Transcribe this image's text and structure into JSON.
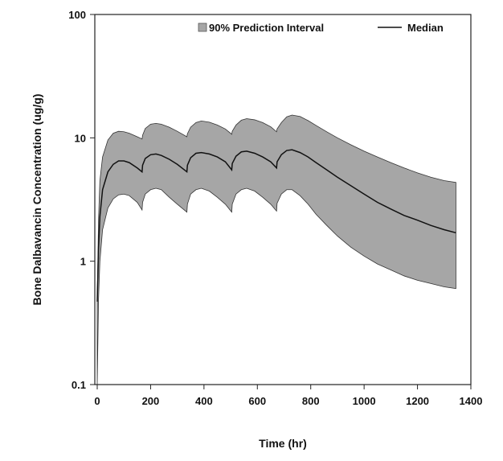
{
  "chart_data": {
    "type": "area",
    "title": "",
    "xlabel": "Time (hr)",
    "ylabel": "Bone Dalbavancin Concentration (ug/g)",
    "xlim": [
      0,
      1400
    ],
    "ylim": [
      0.1,
      100
    ],
    "y_scale": "log",
    "grid": false,
    "legend_position": "top-right",
    "x_ticks": [
      0,
      200,
      400,
      600,
      800,
      1000,
      1200,
      1400
    ],
    "x_tick_labels": [
      "0",
      "200",
      "400",
      "600",
      "800",
      "1000",
      "1200",
      "1400"
    ],
    "y_ticks": [
      0.1,
      1,
      10,
      100
    ],
    "y_tick_labels": [
      "0.1",
      "1",
      "10",
      "100"
    ],
    "legend": {
      "interval_label": "90% Prediction Interval",
      "median_label": "Median"
    },
    "series": [
      {
        "name": "Median",
        "kind": "line",
        "color": "#111111",
        "x": [
          0,
          5,
          10,
          20,
          40,
          60,
          80,
          100,
          120,
          150,
          168,
          170,
          180,
          200,
          220,
          240,
          270,
          300,
          336,
          338,
          350,
          370,
          390,
          420,
          450,
          480,
          504,
          506,
          520,
          540,
          560,
          590,
          620,
          650,
          672,
          674,
          690,
          710,
          730,
          760,
          790,
          820,
          860,
          900,
          950,
          1000,
          1050,
          1100,
          1150,
          1200,
          1250,
          1300,
          1344
        ],
        "y": [
          0.47,
          1.3,
          2.3,
          3.8,
          5.3,
          6.1,
          6.5,
          6.5,
          6.3,
          5.7,
          5.3,
          6.0,
          6.8,
          7.3,
          7.4,
          7.2,
          6.7,
          6.1,
          5.3,
          6.0,
          6.9,
          7.5,
          7.6,
          7.4,
          7.0,
          6.4,
          5.5,
          6.2,
          7.1,
          7.7,
          7.8,
          7.5,
          7.0,
          6.4,
          5.7,
          6.4,
          7.3,
          7.9,
          8.0,
          7.6,
          7.0,
          6.3,
          5.5,
          4.8,
          4.1,
          3.5,
          3.0,
          2.65,
          2.35,
          2.15,
          1.95,
          1.8,
          1.7
        ]
      },
      {
        "name": "90% Prediction Interval",
        "kind": "band",
        "color": "#a6a6a6",
        "x": [
          0,
          5,
          10,
          20,
          40,
          60,
          80,
          100,
          120,
          150,
          168,
          170,
          180,
          200,
          220,
          240,
          270,
          300,
          336,
          338,
          350,
          370,
          390,
          420,
          450,
          480,
          504,
          506,
          520,
          540,
          560,
          590,
          620,
          650,
          672,
          674,
          690,
          710,
          730,
          760,
          790,
          820,
          860,
          900,
          950,
          1000,
          1050,
          1100,
          1150,
          1200,
          1250,
          1300,
          1344
        ],
        "lower": [
          0.1,
          0.5,
          1.0,
          1.8,
          2.7,
          3.2,
          3.45,
          3.5,
          3.4,
          3.0,
          2.6,
          3.0,
          3.5,
          3.8,
          3.9,
          3.8,
          3.3,
          2.9,
          2.5,
          2.9,
          3.5,
          3.8,
          3.9,
          3.7,
          3.3,
          2.9,
          2.5,
          2.9,
          3.5,
          3.8,
          3.9,
          3.7,
          3.3,
          2.9,
          2.55,
          2.95,
          3.5,
          3.8,
          3.8,
          3.4,
          2.9,
          2.4,
          1.95,
          1.6,
          1.3,
          1.1,
          0.95,
          0.85,
          0.76,
          0.7,
          0.66,
          0.62,
          0.6
        ],
        "upper": [
          0.5,
          2.2,
          4.5,
          7.0,
          9.6,
          10.9,
          11.3,
          11.2,
          10.9,
          10.2,
          9.8,
          10.5,
          11.9,
          12.9,
          13.1,
          12.9,
          12.2,
          11.3,
          10.2,
          10.8,
          12.2,
          13.3,
          13.7,
          13.4,
          12.7,
          11.8,
          10.7,
          11.3,
          12.7,
          13.9,
          14.3,
          14.0,
          13.3,
          12.3,
          11.2,
          11.8,
          13.3,
          14.8,
          15.3,
          14.9,
          13.8,
          12.6,
          11.2,
          10.0,
          8.8,
          7.8,
          7.0,
          6.3,
          5.7,
          5.2,
          4.8,
          4.5,
          4.35
        ]
      }
    ]
  }
}
